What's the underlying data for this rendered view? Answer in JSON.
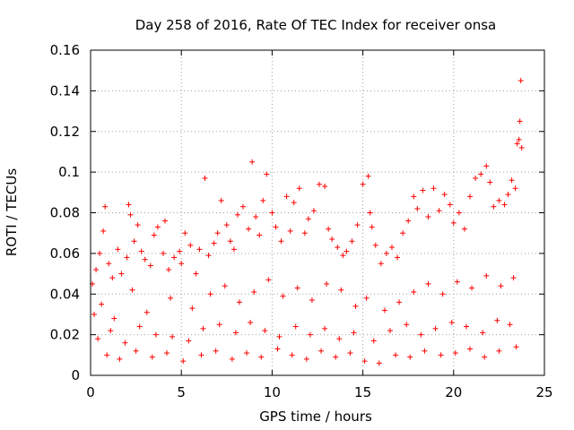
{
  "chart_data": {
    "type": "scatter",
    "title": "Day 258 of 2016, Rate Of TEC Index for receiver onsa",
    "xlabel": "GPS time / hours",
    "ylabel": "ROTI / TECUs",
    "xlim": [
      0,
      25
    ],
    "ylim": [
      0,
      0.16
    ],
    "grid": true,
    "marker": "+",
    "marker_color": "#ff0000",
    "x_ticks": [
      {
        "value": 0,
        "label": "0"
      },
      {
        "value": 5,
        "label": "5"
      },
      {
        "value": 10,
        "label": "10"
      },
      {
        "value": 15,
        "label": "15"
      },
      {
        "value": 20,
        "label": "20"
      },
      {
        "value": 25,
        "label": "25"
      }
    ],
    "y_ticks": [
      {
        "value": 0,
        "label": "0"
      },
      {
        "value": 0.02,
        "label": "0.02"
      },
      {
        "value": 0.04,
        "label": "0.04"
      },
      {
        "value": 0.06,
        "label": "0.06"
      },
      {
        "value": 0.08,
        "label": "0.08"
      },
      {
        "value": 0.1,
        "label": "0.1"
      },
      {
        "value": 0.12,
        "label": "0.12"
      },
      {
        "value": 0.14,
        "label": "0.14"
      },
      {
        "value": 0.16,
        "label": "0.16"
      }
    ],
    "series": [
      {
        "name": "ROTI",
        "x": [
          0.1,
          0.3,
          0.5,
          0.7,
          0.8,
          1.0,
          1.2,
          1.5,
          1.7,
          2.0,
          2.1,
          2.2,
          2.4,
          2.6,
          2.8,
          3.0,
          3.3,
          3.5,
          3.7,
          4.0,
          4.1,
          4.3,
          4.6,
          4.9,
          5.0,
          5.2,
          5.5,
          5.8,
          6.0,
          6.3,
          6.5,
          6.8,
          7.0,
          7.2,
          7.5,
          7.7,
          7.9,
          8.1,
          8.4,
          8.7,
          8.9,
          9.1,
          9.3,
          9.5,
          9.7,
          10.0,
          10.2,
          10.5,
          10.8,
          11.0,
          11.2,
          11.5,
          11.8,
          12.0,
          12.3,
          12.6,
          12.9,
          13.1,
          13.3,
          13.6,
          13.9,
          14.1,
          14.4,
          14.7,
          15.0,
          15.3,
          15.4,
          15.5,
          15.7,
          16.0,
          16.3,
          16.6,
          16.9,
          17.2,
          17.5,
          17.8,
          18.0,
          18.3,
          18.6,
          18.9,
          19.2,
          19.5,
          19.8,
          20.0,
          20.3,
          20.6,
          20.9,
          21.2,
          21.5,
          21.8,
          22.0,
          22.2,
          22.5,
          22.8,
          23.0,
          23.2,
          23.4,
          23.5,
          23.6,
          23.65,
          23.7,
          23.75,
          0.2,
          0.6,
          1.3,
          2.3,
          3.1,
          4.4,
          5.6,
          6.6,
          7.4,
          8.2,
          9.0,
          9.8,
          10.6,
          11.4,
          12.2,
          13.0,
          13.8,
          14.6,
          15.2,
          16.2,
          17.0,
          17.8,
          18.6,
          19.4,
          20.2,
          21.0,
          21.8,
          22.6,
          23.3,
          0.4,
          1.1,
          1.9,
          2.7,
          3.6,
          4.5,
          5.4,
          6.2,
          7.1,
          8.0,
          8.8,
          9.6,
          10.4,
          11.3,
          12.1,
          12.9,
          13.7,
          14.5,
          15.6,
          16.5,
          17.4,
          18.2,
          19.0,
          19.9,
          20.7,
          21.6,
          22.4,
          23.1,
          0.9,
          1.6,
          2.5,
          3.4,
          4.2,
          5.1,
          6.1,
          6.9,
          7.8,
          8.6,
          9.4,
          10.3,
          11.1,
          11.9,
          12.7,
          13.5,
          14.3,
          15.1,
          15.9,
          16.8,
          17.6,
          18.4,
          19.3,
          20.1,
          20.9,
          21.7,
          22.5,
          23.45
        ],
        "y": [
          0.045,
          0.052,
          0.06,
          0.071,
          0.083,
          0.055,
          0.048,
          0.062,
          0.05,
          0.058,
          0.084,
          0.079,
          0.066,
          0.074,
          0.061,
          0.057,
          0.054,
          0.069,
          0.073,
          0.06,
          0.076,
          0.052,
          0.058,
          0.061,
          0.055,
          0.07,
          0.064,
          0.05,
          0.062,
          0.097,
          0.059,
          0.065,
          0.07,
          0.086,
          0.074,
          0.066,
          0.062,
          0.079,
          0.083,
          0.072,
          0.105,
          0.078,
          0.069,
          0.086,
          0.099,
          0.08,
          0.073,
          0.066,
          0.088,
          0.071,
          0.085,
          0.092,
          0.07,
          0.077,
          0.081,
          0.094,
          0.093,
          0.072,
          0.067,
          0.063,
          0.059,
          0.061,
          0.066,
          0.074,
          0.094,
          0.098,
          0.08,
          0.073,
          0.064,
          0.055,
          0.06,
          0.063,
          0.058,
          0.07,
          0.076,
          0.088,
          0.082,
          0.091,
          0.078,
          0.092,
          0.081,
          0.089,
          0.084,
          0.075,
          0.08,
          0.072,
          0.088,
          0.097,
          0.099,
          0.103,
          0.095,
          0.083,
          0.086,
          0.084,
          0.089,
          0.096,
          0.092,
          0.114,
          0.116,
          0.125,
          0.145,
          0.112,
          0.03,
          0.035,
          0.028,
          0.042,
          0.031,
          0.038,
          0.033,
          0.04,
          0.044,
          0.036,
          0.041,
          0.047,
          0.039,
          0.043,
          0.037,
          0.045,
          0.042,
          0.034,
          0.038,
          0.032,
          0.036,
          0.041,
          0.045,
          0.04,
          0.046,
          0.043,
          0.049,
          0.044,
          0.048,
          0.018,
          0.022,
          0.016,
          0.024,
          0.02,
          0.019,
          0.017,
          0.023,
          0.025,
          0.021,
          0.026,
          0.022,
          0.019,
          0.024,
          0.02,
          0.023,
          0.018,
          0.021,
          0.017,
          0.022,
          0.025,
          0.02,
          0.023,
          0.026,
          0.024,
          0.021,
          0.027,
          0.025,
          0.01,
          0.008,
          0.012,
          0.009,
          0.011,
          0.007,
          0.01,
          0.012,
          0.008,
          0.011,
          0.009,
          0.013,
          0.01,
          0.008,
          0.012,
          0.009,
          0.011,
          0.007,
          0.006,
          0.01,
          0.009,
          0.012,
          0.01,
          0.011,
          0.013,
          0.009,
          0.012,
          0.014
        ]
      }
    ]
  }
}
